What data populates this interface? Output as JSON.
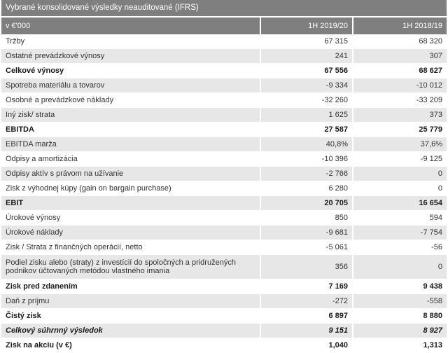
{
  "table": {
    "title": "Vybrané konsolidované výsledky neauditované (IFRS)",
    "header": {
      "label": "v €'000",
      "col1": "1H 2019/20",
      "col2": "1H 2018/19"
    },
    "rows": [
      {
        "label": "Tržby",
        "v1": "67 315",
        "v2": "68 320",
        "bold": false,
        "shade": false
      },
      {
        "label": "Ostatné prevádzkové výnosy",
        "v1": "241",
        "v2": "307",
        "bold": false,
        "shade": true
      },
      {
        "label": "Celkové výnosy",
        "v1": "67 556",
        "v2": "68 627",
        "bold": true,
        "shade": false
      },
      {
        "label": "Spotreba materiálu a tovarov",
        "v1": "-9 334",
        "v2": "-10 012",
        "bold": false,
        "shade": true
      },
      {
        "label": "Osobné a prevádzkové náklady",
        "v1": "-32 260",
        "v2": "-33 209",
        "bold": false,
        "shade": false
      },
      {
        "label": "Iný zisk/ strata",
        "v1": "1 625",
        "v2": "373",
        "bold": false,
        "shade": true
      },
      {
        "label": "EBITDA",
        "v1": "27 587",
        "v2": "25 779",
        "bold": true,
        "shade": false
      },
      {
        "label": "EBITDA marža",
        "v1": "40,8%",
        "v2": "37,6%",
        "bold": false,
        "shade": true
      },
      {
        "label": "Odpisy a amortizácia",
        "v1": "-10 396",
        "v2": "-9 125",
        "bold": false,
        "shade": false
      },
      {
        "label": "Odpisy aktív s právom na užívanie",
        "v1": "-2 766",
        "v2": "0",
        "bold": false,
        "shade": true
      },
      {
        "label": "Zisk z výhodnej kúpy (gain on bargain purchase)",
        "v1": "6 280",
        "v2": "0",
        "bold": false,
        "shade": false
      },
      {
        "label": "EBIT",
        "v1": "20 705",
        "v2": "16 654",
        "bold": true,
        "shade": true
      },
      {
        "label": "Úrokové výnosy",
        "v1": "850",
        "v2": "594",
        "bold": false,
        "shade": false
      },
      {
        "label": "Úrokové náklady",
        "v1": "-9 681",
        "v2": "-7 754",
        "bold": false,
        "shade": true
      },
      {
        "label": "Zisk / Strata z finančných operácií, netto",
        "v1": "-5 061",
        "v2": "-56",
        "bold": false,
        "shade": false
      },
      {
        "label": "Podiel zisku alebo (straty) z investícií do spoločných a pridružených podnikov účtovaných metódou vlastného imania",
        "v1": "356",
        "v2": "0",
        "bold": false,
        "shade": true,
        "tall": true
      },
      {
        "label": "Zisk pred zdanením",
        "v1": "7 169",
        "v2": "9 438",
        "bold": true,
        "shade": false
      },
      {
        "label": "Daň z príjmu",
        "v1": "-272",
        "v2": "-558",
        "bold": false,
        "shade": true
      },
      {
        "label": "Čistý zisk",
        "v1": "6 897",
        "v2": "8 880",
        "bold": true,
        "shade": false
      },
      {
        "label": "Celkový súhrnný výsledok",
        "v1": "9 151",
        "v2": "8 927",
        "bold": true,
        "shade": true
      },
      {
        "label": "Zisk na akciu (v €)",
        "v1": "1,040",
        "v2": "1,313",
        "bold": true,
        "shade": false
      }
    ]
  },
  "colors": {
    "header_bg": "#7f7f7f",
    "row_shade": "#e7e7e7",
    "text": "#333333"
  }
}
